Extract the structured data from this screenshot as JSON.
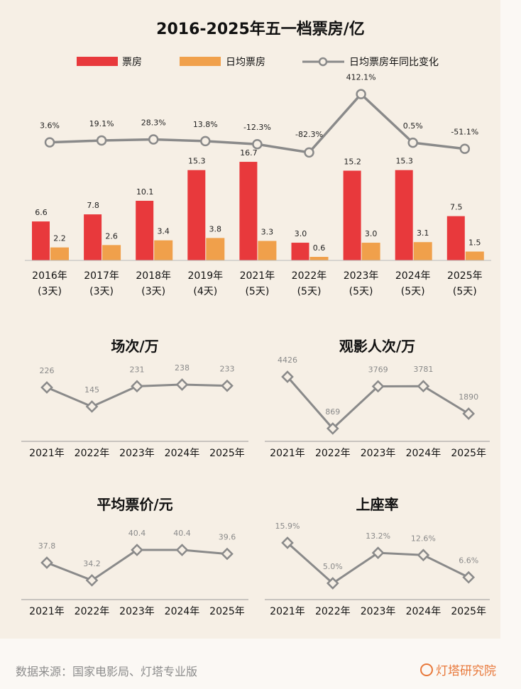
{
  "chart_data": [
    {
      "type": "bar+line",
      "title": "2016-2025年五一档票房/亿",
      "categories": [
        "2016年\n(3天)",
        "2017年\n(3天)",
        "2018年\n(3天)",
        "2019年\n(4天)",
        "2021年\n(5天)",
        "2022年\n(5天)",
        "2023年\n(5天)",
        "2024年\n(5天)",
        "2025年\n(5天)"
      ],
      "series": [
        {
          "name": "票房",
          "type": "bar",
          "color": "#e8393c",
          "values": [
            6.6,
            7.8,
            10.1,
            15.3,
            16.7,
            3.0,
            15.2,
            15.3,
            7.5
          ]
        },
        {
          "name": "日均票房",
          "type": "bar",
          "color": "#f0a04b",
          "values": [
            2.2,
            2.6,
            3.4,
            3.8,
            3.3,
            0.6,
            3.0,
            3.1,
            1.5
          ]
        },
        {
          "name": "日均票房年同比变化",
          "type": "line",
          "color": "#8a8a8a",
          "values": [
            3.6,
            19.1,
            28.3,
            13.8,
            -12.3,
            -82.3,
            412.1,
            0.5,
            -51.1
          ],
          "labels": [
            "3.6%",
            "19.1%",
            "28.3%",
            "13.8%",
            "-12.3%",
            "-82.3%",
            "412.1%",
            "0.5%",
            "-51.1%"
          ]
        }
      ],
      "legend": "top"
    },
    {
      "type": "line",
      "title": "场次/万",
      "categories": [
        "2021年",
        "2022年",
        "2023年",
        "2024年",
        "2025年"
      ],
      "values": [
        226,
        145,
        231,
        238,
        233
      ],
      "labels": [
        "226",
        "145",
        "231",
        "238",
        "233"
      ]
    },
    {
      "type": "line",
      "title": "观影人次/万",
      "categories": [
        "2021年",
        "2022年",
        "2023年",
        "2024年",
        "2025年"
      ],
      "values": [
        4426,
        869,
        3769,
        3781,
        1890
      ],
      "labels": [
        "4426",
        "869",
        "3769",
        "3781",
        "1890"
      ]
    },
    {
      "type": "line",
      "title": "平均票价/元",
      "categories": [
        "2021年",
        "2022年",
        "2023年",
        "2024年",
        "2025年"
      ],
      "values": [
        37.8,
        34.2,
        40.4,
        40.4,
        39.6
      ],
      "labels": [
        "37.8",
        "34.2",
        "40.4",
        "40.4",
        "39.6"
      ]
    },
    {
      "type": "line",
      "title": "上座率",
      "categories": [
        "2021年",
        "2022年",
        "2023年",
        "2024年",
        "2025年"
      ],
      "values": [
        15.9,
        5.0,
        13.2,
        12.6,
        6.6
      ],
      "labels": [
        "15.9%",
        "5.0%",
        "13.2%",
        "12.6%",
        "6.6%"
      ]
    }
  ],
  "footer": {
    "source": "数据来源：国家电影局、灯塔专业版",
    "brand": "灯塔研究院"
  }
}
